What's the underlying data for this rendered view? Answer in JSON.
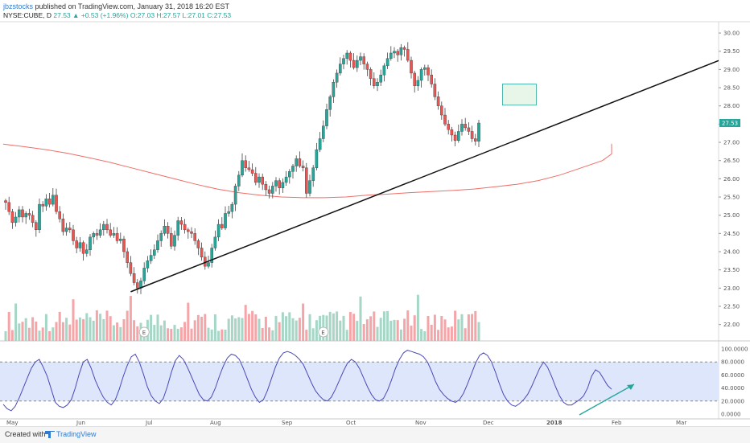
{
  "header": {
    "author": "jbzstocks",
    "published": "published on TradingView.com, January 31, 2018 16:20 EST",
    "symbol": "NYSE:CUBE, D",
    "last": "27.53",
    "change": "+0.53 (+1.96%)",
    "ohlc": "O:27.03 H:27.57 L:27.01 C:27.53"
  },
  "footer": {
    "created": "Created with",
    "brand": "TradingView"
  },
  "colors": {
    "up": "#26a69a",
    "down": "#ef5350",
    "up_vol": "#a5d6c6",
    "down_vol": "#f5a5a8",
    "ma": "#ef6e68",
    "trend": "#111111",
    "stoch": "#4a4ab8",
    "stoch_band": "#dde6fb",
    "arrow": "#26a69a",
    "box_fill": "#e8f5e9",
    "box_border": "#26a69a"
  },
  "chart_data": [
    {
      "type": "candlestick",
      "price_axis_ticks": [
        "30.00",
        "29.50",
        "29.00",
        "28.50",
        "28.00",
        "27.50",
        "27.00",
        "26.50",
        "26.00",
        "25.50",
        "25.00",
        "24.50",
        "24.00",
        "23.50",
        "23.00",
        "22.50",
        "22.00"
      ],
      "ylim": [
        21.75,
        30.2
      ],
      "last_price_label": "27.53",
      "x_ticks": [
        "May",
        "Jun",
        "Jul",
        "Aug",
        "Sep",
        "Oct",
        "Nov",
        "Dec",
        "2018",
        "Feb",
        "Mar"
      ],
      "closes": [
        25.35,
        25.1,
        24.8,
        24.95,
        25.15,
        24.95,
        25.05,
        25.0,
        24.8,
        24.6,
        25.3,
        25.25,
        25.45,
        25.3,
        25.55,
        25.1,
        24.9,
        24.55,
        24.65,
        24.6,
        24.3,
        24.1,
        24.25,
        23.95,
        24.05,
        24.4,
        24.5,
        24.45,
        24.6,
        24.75,
        24.6,
        24.45,
        24.5,
        24.3,
        24.35,
        24.0,
        23.7,
        23.4,
        23.15,
        23.0,
        23.2,
        23.55,
        23.75,
        23.9,
        24.05,
        24.3,
        24.5,
        24.7,
        24.5,
        24.15,
        24.45,
        24.85,
        24.75,
        24.6,
        24.55,
        24.5,
        24.3,
        24.1,
        23.85,
        23.6,
        23.7,
        24.1,
        24.4,
        24.75,
        24.65,
        25.05,
        25.1,
        25.3,
        25.8,
        26.1,
        26.5,
        26.3,
        26.25,
        26.15,
        25.9,
        26.05,
        25.85,
        25.7,
        25.6,
        25.8,
        25.95,
        25.75,
        25.9,
        26.05,
        26.2,
        26.35,
        26.55,
        26.35,
        26.3,
        25.6,
        25.95,
        26.3,
        26.8,
        27.1,
        27.45,
        27.9,
        28.25,
        28.65,
        28.9,
        29.15,
        29.3,
        29.45,
        29.25,
        29.05,
        29.25,
        29.35,
        29.15,
        29.0,
        28.75,
        28.55,
        28.65,
        28.85,
        29.1,
        29.3,
        29.45,
        29.5,
        29.4,
        29.6,
        29.55,
        29.25,
        28.9,
        28.55,
        28.7,
        29.0,
        29.05,
        28.85,
        28.6,
        28.25,
        28.0,
        27.75,
        27.5,
        27.35,
        27.2,
        27.05,
        27.3,
        27.5,
        27.4,
        27.3,
        27.1,
        27.03,
        27.53
      ],
      "ma_points": [
        26.95,
        26.88,
        26.8,
        26.7,
        26.58,
        26.45,
        26.3,
        26.15,
        26.0,
        25.85,
        25.72,
        25.62,
        25.55,
        25.5,
        25.48,
        25.48,
        25.5,
        25.55,
        25.58,
        25.62,
        25.65,
        25.68,
        25.72,
        25.78,
        25.85,
        25.95,
        26.1,
        26.3,
        26.5,
        26.68,
        26.82,
        26.9,
        26.94,
        26.96
      ],
      "trendline": {
        "from": {
          "bar": 37,
          "price": 22.9
        },
        "to": {
          "bar": 170,
          "price": 27.75
        }
      },
      "target_zone": {
        "from_bar": 147,
        "to_bar": 157,
        "low": 28.02,
        "high": 28.6
      },
      "earnings_markers": [
        {
          "bar": 41,
          "label": "E"
        },
        {
          "bar": 94,
          "label": "E"
        }
      ]
    },
    {
      "type": "line",
      "name": "Stochastic",
      "yticks": [
        "100.0000",
        "80.0000",
        "60.0000",
        "40.0000",
        "20.0000",
        "0.0000"
      ],
      "ylim": [
        0,
        100
      ],
      "band": [
        20,
        80
      ],
      "values": [
        15,
        8,
        5,
        12,
        25,
        40,
        55,
        70,
        80,
        84,
        72,
        58,
        38,
        18,
        12,
        10,
        14,
        22,
        40,
        62,
        80,
        84,
        70,
        52,
        38,
        26,
        18,
        14,
        22,
        38,
        58,
        75,
        88,
        92,
        80,
        62,
        42,
        28,
        20,
        16,
        24,
        42,
        64,
        82,
        90,
        84,
        72,
        58,
        44,
        30,
        22,
        20,
        26,
        40,
        58,
        74,
        86,
        92,
        90,
        84,
        70,
        54,
        38,
        26,
        18,
        22,
        36,
        54,
        72,
        86,
        94,
        96,
        94,
        90,
        84,
        76,
        62,
        48,
        36,
        28,
        22,
        20,
        26,
        38,
        52,
        66,
        78,
        84,
        80,
        70,
        56,
        42,
        30,
        22,
        20,
        24,
        36,
        52,
        70,
        84,
        94,
        98,
        96,
        94,
        92,
        88,
        80,
        66,
        50,
        38,
        30,
        24,
        20,
        18,
        22,
        32,
        46,
        62,
        78,
        90,
        94,
        90,
        80,
        64,
        46,
        30,
        20,
        14,
        12,
        16,
        22,
        30,
        42,
        56,
        70,
        80,
        72,
        58,
        42,
        28,
        18,
        14,
        14,
        18,
        22,
        28,
        40,
        58,
        68,
        64,
        54,
        44,
        38
      ]
    }
  ]
}
